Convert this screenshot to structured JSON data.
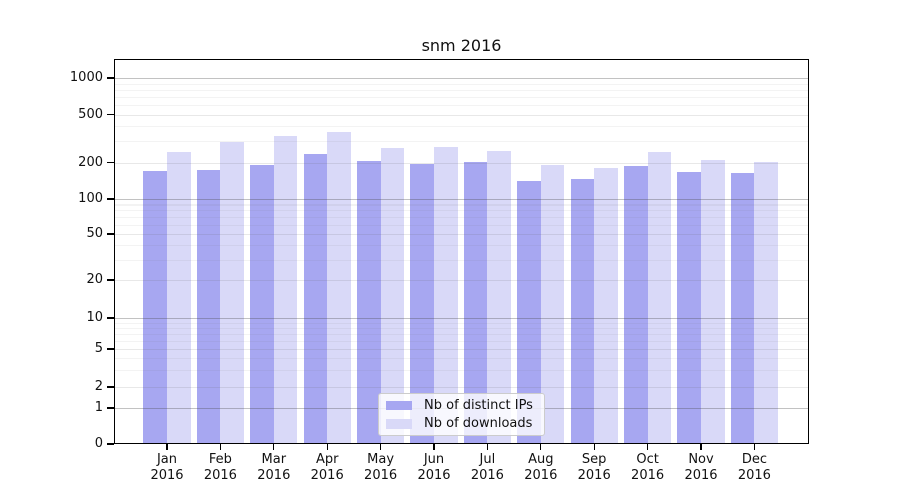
{
  "chart_data": {
    "type": "bar",
    "title": "snm 2016",
    "categories": [
      "Jan 2016",
      "Feb 2016",
      "Mar 2016",
      "Apr 2016",
      "May 2016",
      "Jun 2016",
      "Jul 2016",
      "Aug 2016",
      "Sep 2016",
      "Oct 2016",
      "Nov 2016",
      "Dec 2016"
    ],
    "series": [
      {
        "name": "Nb of distinct IPs",
        "color": "#a7a7f1",
        "values": [
          170,
          172,
          191,
          235,
          205,
          196,
          202,
          141,
          145,
          188,
          166,
          163
        ]
      },
      {
        "name": "Nb of downloads",
        "color": "#d9d9f8",
        "values": [
          243,
          295,
          334,
          355,
          263,
          268,
          251,
          190,
          180,
          244,
          210,
          203
        ]
      }
    ],
    "xlabel": "",
    "ylabel": "",
    "yscale": "symlog",
    "y_ticks": [
      0,
      1,
      2,
      5,
      10,
      20,
      50,
      100,
      200,
      500,
      1000
    ],
    "ylim": [
      0,
      1400
    ],
    "grid": true,
    "legend_position": "lower center"
  }
}
